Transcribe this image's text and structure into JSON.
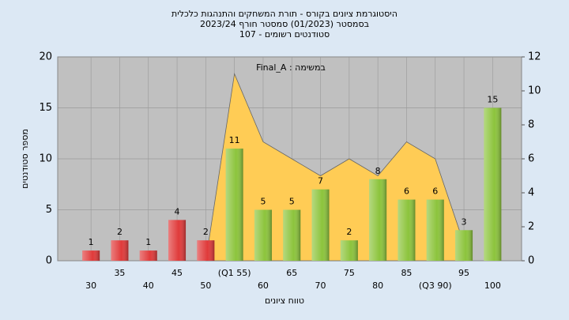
{
  "chart_data": {
    "type": "bar",
    "title": [
      "היסטוגרמת ציונים בקורס - תורת המשחקים והתנהגות כלכלית",
      "בסמסטר  (01/2023)  סמסטר חורף 2023/24",
      "סטודנטים רשומים - 107"
    ],
    "annotation": "Final_A : במשימה",
    "x_label": "טווח ציונים",
    "y_label": "מספר סטודנטים",
    "categories": [
      "30",
      "35",
      "40",
      "45",
      "50",
      "(Q1 55)",
      "60",
      "65",
      "70",
      "75",
      "80",
      "85",
      "(Q3 90)",
      "95",
      "100"
    ],
    "values": [
      1,
      2,
      1,
      4,
      2,
      11,
      5,
      5,
      7,
      2,
      8,
      6,
      6,
      3,
      15
    ],
    "colors": [
      "#e03a3a",
      "#e03a3a",
      "#e03a3a",
      "#e03a3a",
      "#e03a3a",
      "#8cc43c",
      "#8cc43c",
      "#8cc43c",
      "#8cc43c",
      "#8cc43c",
      "#8cc43c",
      "#8cc43c",
      "#8cc43c",
      "#8cc43c",
      "#8cc43c"
    ],
    "area": {
      "axis": "y2",
      "color": "#ffcc55",
      "values": [
        null,
        null,
        null,
        null,
        0,
        11,
        7,
        6,
        5,
        6,
        5,
        7,
        6,
        1,
        null
      ]
    },
    "ylim": [
      0,
      20
    ],
    "yticks": [
      0,
      5,
      10,
      15,
      20
    ],
    "y2lim": [
      0,
      12
    ],
    "y2ticks": [
      0,
      2,
      4,
      6,
      8,
      10,
      12
    ],
    "grid": true
  }
}
